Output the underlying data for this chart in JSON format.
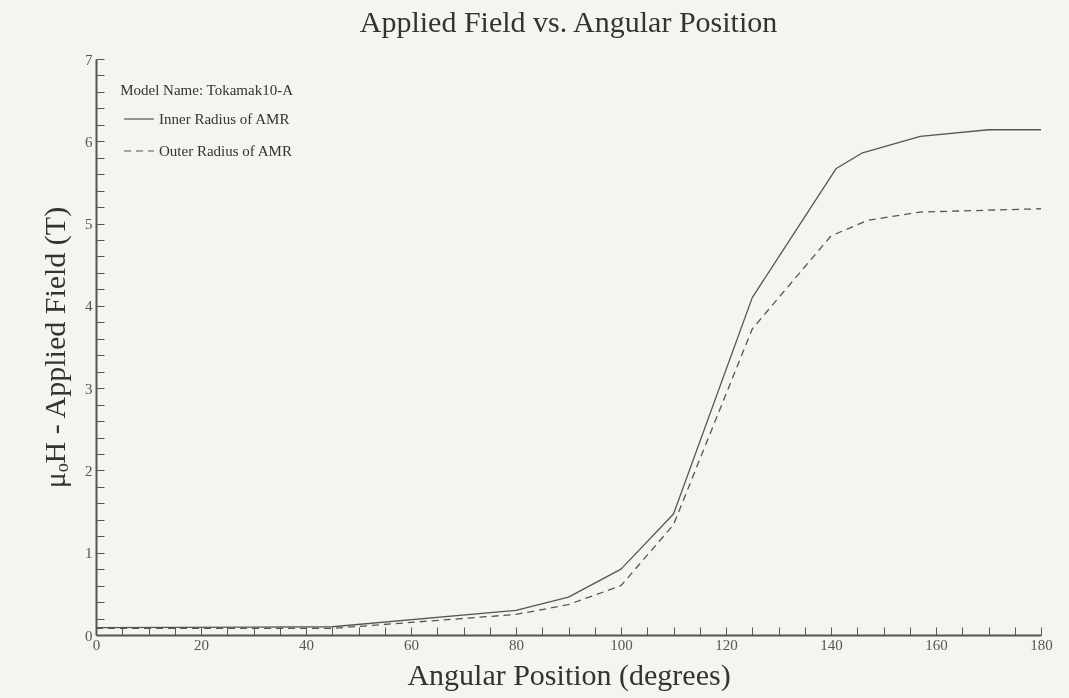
{
  "chart_data": {
    "type": "line",
    "title": "Applied Field vs. Angular Position",
    "xlabel": "Angular Position (degrees)",
    "ylabel": "μₒH - Applied Field (T)",
    "legend_title": "Model Name: Tokamak10-A",
    "legend": "top left",
    "grid": false,
    "marker": "none",
    "xlim": [
      0,
      180
    ],
    "ylim": [
      0,
      7
    ],
    "xticks": [
      0,
      {
        "value": 5,
        "label": null
      },
      {
        "value": 10,
        "label": null
      },
      {
        "value": 15,
        "label": null
      },
      20,
      {
        "value": 25,
        "label": null
      },
      {
        "value": 30,
        "label": null
      },
      {
        "value": 35,
        "label": null
      },
      40,
      {
        "value": 45,
        "label": null
      },
      {
        "value": 50,
        "label": null
      },
      {
        "value": 55,
        "label": null
      },
      60,
      {
        "value": 65,
        "label": null
      },
      {
        "value": 70,
        "label": null
      },
      {
        "value": 75,
        "label": null
      },
      80,
      {
        "value": 85,
        "label": null
      },
      {
        "value": 90,
        "label": null
      },
      {
        "value": 95,
        "label": null
      },
      100,
      {
        "value": 105,
        "label": null
      },
      {
        "value": 110,
        "label": null
      },
      {
        "value": 115,
        "label": null
      },
      120,
      {
        "value": 125,
        "label": null
      },
      {
        "value": 130,
        "label": null
      },
      {
        "value": 135,
        "label": null
      },
      140,
      {
        "value": 145,
        "label": null
      },
      {
        "value": 150,
        "label": null
      },
      {
        "value": 155,
        "label": null
      },
      160,
      {
        "value": 165,
        "label": null
      },
      {
        "value": 170,
        "label": null
      },
      {
        "value": 175,
        "label": null
      },
      180
    ],
    "yticks": [
      0,
      {
        "value": 0.2,
        "label": null
      },
      {
        "value": 0.4,
        "label": null
      },
      {
        "value": 0.6,
        "label": null
      },
      {
        "value": 0.8,
        "label": null
      },
      1,
      {
        "value": 1.2,
        "label": null
      },
      {
        "value": 1.4,
        "label": null
      },
      {
        "value": 1.6,
        "label": null
      },
      {
        "value": 1.8,
        "label": null
      },
      2,
      {
        "value": 2.2,
        "label": null
      },
      {
        "value": 2.4,
        "label": null
      },
      {
        "value": 2.6,
        "label": null
      },
      {
        "value": 2.8,
        "label": null
      },
      3,
      {
        "value": 3.2,
        "label": null
      },
      {
        "value": 3.4,
        "label": null
      },
      {
        "value": 3.6,
        "label": null
      },
      {
        "value": 3.8,
        "label": null
      },
      4,
      {
        "value": 4.2,
        "label": null
      },
      {
        "value": 4.4,
        "label": null
      },
      {
        "value": 4.6,
        "label": null
      },
      {
        "value": 4.8,
        "label": null
      },
      5,
      {
        "value": 5.2,
        "label": null
      },
      {
        "value": 5.4,
        "label": null
      },
      {
        "value": 5.6,
        "label": null
      },
      {
        "value": 5.8,
        "label": null
      },
      6,
      {
        "value": 6.2,
        "label": null
      },
      {
        "value": 6.4,
        "label": null
      },
      {
        "value": 6.6,
        "label": null
      },
      {
        "value": 6.8,
        "label": null
      },
      7
    ],
    "series": [
      {
        "name": "Inner Radius of AMR",
        "color": "#555555",
        "line_style": "solid",
        "x": [
          0,
          45,
          80,
          90,
          100,
          110,
          125,
          141,
          146,
          157,
          170,
          180
        ],
        "values": [
          0.09,
          0.1,
          0.3,
          0.46,
          0.8,
          1.47,
          4.1,
          5.67,
          5.86,
          6.06,
          6.14,
          6.14
        ]
      },
      {
        "name": "Outer Radius of AMR",
        "color": "#555555",
        "line_style": "dashed",
        "x": [
          0,
          45,
          80,
          90,
          100,
          110,
          125,
          140,
          147,
          157,
          180
        ],
        "values": [
          0.08,
          0.08,
          0.25,
          0.37,
          0.6,
          1.34,
          3.72,
          4.85,
          5.04,
          5.14,
          5.18
        ]
      }
    ]
  }
}
